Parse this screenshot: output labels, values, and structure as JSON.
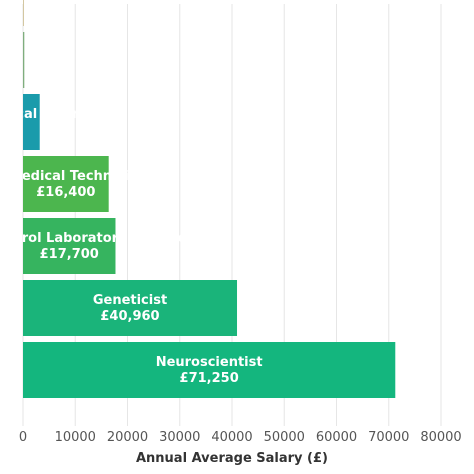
{
  "chart_data": {
    "type": "bar",
    "orientation": "horizontal",
    "xlabel": "Annual Average Salary (£)",
    "ylabel": "",
    "xlim": [
      0,
      80000
    ],
    "x_ticks": [
      "0",
      "10000",
      "20000",
      "30000",
      "40000",
      "50000",
      "60000",
      "70000",
      "80000"
    ],
    "grid": true,
    "categories": [
      "Neuroscientist",
      "Geneticist",
      "Quality Control Laboratory Technician",
      "Biomedical Technician",
      "Biomedical Scientist",
      "",
      ""
    ],
    "values": [
      71250,
      40960,
      17700,
      16400,
      3200,
      250,
      120
    ],
    "value_labels": [
      "£71,250",
      "£40,960",
      "£17,700",
      "£16,400",
      "",
      "",
      ""
    ],
    "colors": [
      "#14b67e",
      "#1ab47a",
      "#36b45f",
      "#4cb64e",
      "#1a9bab",
      "#7fae7e",
      "#c8b98a"
    ]
  }
}
